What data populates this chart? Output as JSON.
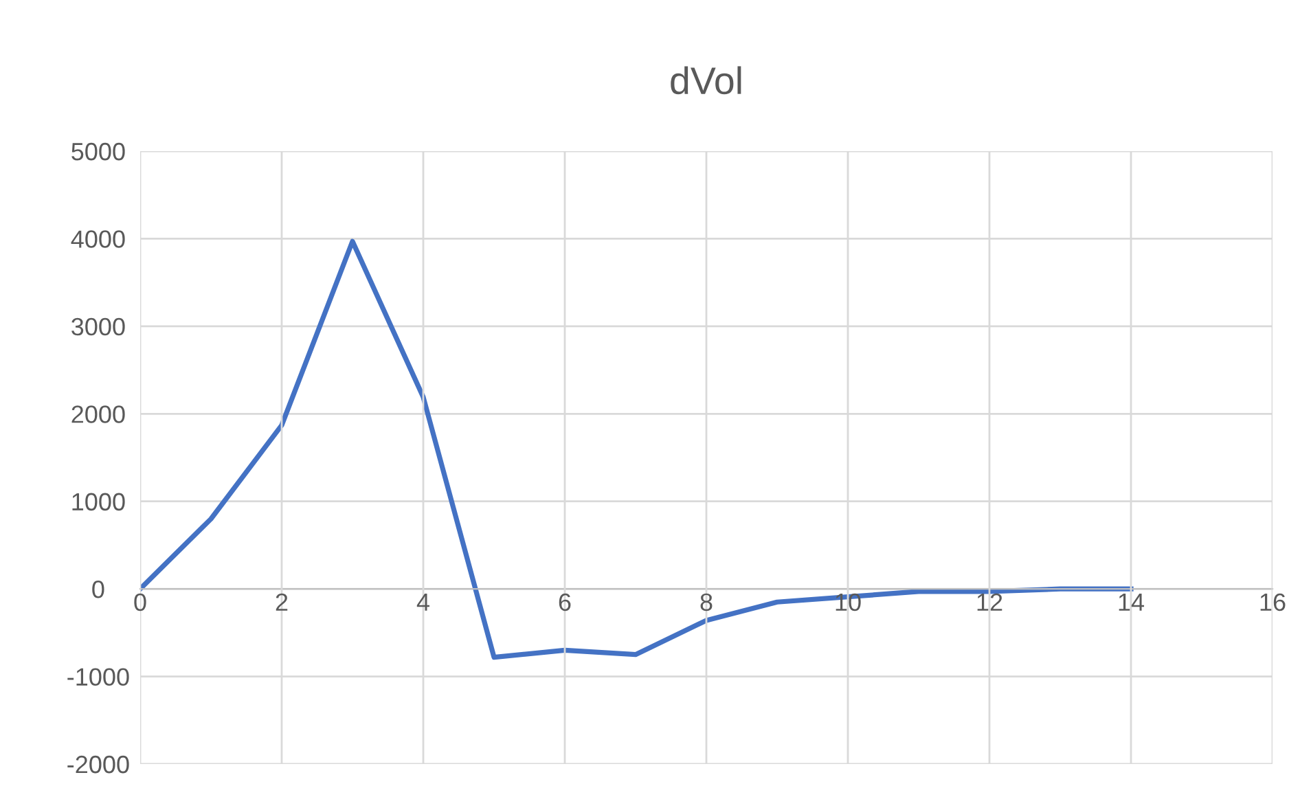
{
  "chart_data": {
    "type": "line",
    "title": "dVol",
    "x": [
      0,
      1,
      2,
      3,
      4,
      5,
      6,
      7,
      8,
      9,
      10,
      11,
      12,
      13,
      14
    ],
    "series": [
      {
        "color": "#4472c4",
        "values": [
          0,
          800,
          1870,
          3970,
          2190,
          -780,
          -700,
          -750,
          -360,
          -150,
          -90,
          -30,
          -30,
          0,
          0
        ]
      }
    ],
    "xlim": [
      0,
      16
    ],
    "xticks": [
      0,
      2,
      4,
      6,
      8,
      10,
      12,
      14,
      16
    ],
    "ylim": [
      -2000,
      5000
    ],
    "yticks": [
      -2000,
      -1000,
      0,
      1000,
      2000,
      3000,
      4000,
      5000
    ],
    "grid": true,
    "marker": "none",
    "line_style": "solid"
  }
}
